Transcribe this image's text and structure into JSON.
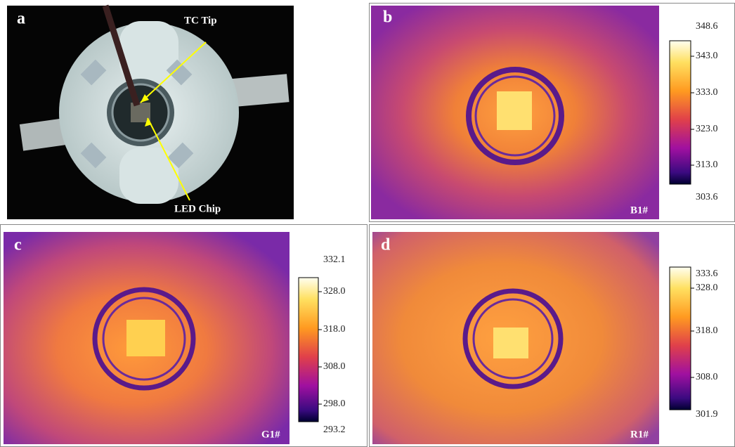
{
  "panels": [
    {
      "label": "a",
      "annotations": [
        "TC Tip",
        "LED Chip"
      ]
    },
    {
      "label": "b",
      "tag": "B1#",
      "colorbar": [
        "348.6",
        "343.0",
        "333.0",
        "323.0",
        "313.0",
        "303.6"
      ]
    },
    {
      "label": "c",
      "tag": "G1#",
      "colorbar": [
        "332.1",
        "328.0",
        "318.0",
        "308.0",
        "298.0",
        "293.2"
      ]
    },
    {
      "label": "d",
      "tag": "R1#",
      "colorbar": [
        "333.6",
        "328.0",
        "318.0",
        "308.0",
        "301.9"
      ]
    }
  ]
}
